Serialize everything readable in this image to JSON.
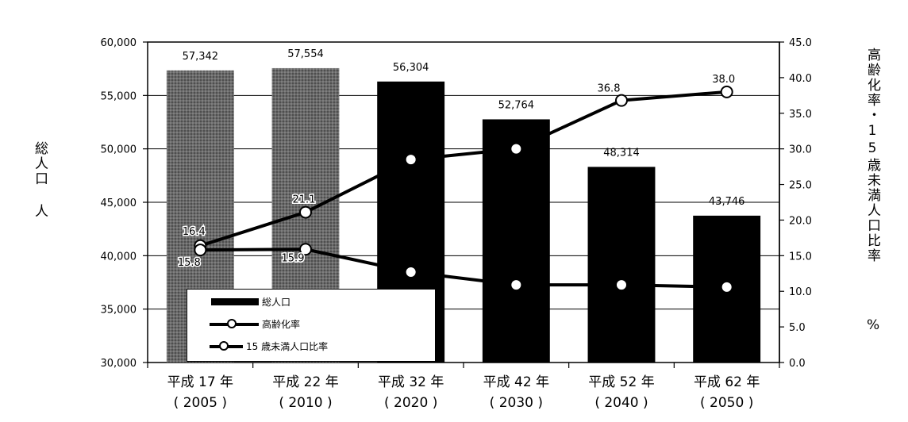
{
  "chart_data": {
    "type": "bar",
    "categories": [
      [
        "平成 17 年",
        "( 2005 )"
      ],
      [
        "平成 22 年",
        "( 2010 )"
      ],
      [
        "平成 32 年",
        "( 2020 )"
      ],
      [
        "平成 42 年",
        "( 2030 )"
      ],
      [
        "平成 52 年",
        "( 2040 )"
      ],
      [
        "平成 62 年",
        "( 2050 )"
      ]
    ],
    "series": [
      {
        "name": "総人口",
        "type": "bar",
        "axis": "left",
        "values": [
          57342,
          57554,
          56304,
          52764,
          48314,
          43746
        ],
        "labels": [
          "57,342",
          "57,554",
          "56,304",
          "52,764",
          "48,314",
          "43,746"
        ],
        "styles": [
          "hatched",
          "hatched",
          "solid",
          "solid",
          "solid",
          "solid"
        ]
      },
      {
        "name": "高齢化率",
        "type": "line",
        "axis": "right",
        "values": [
          16.4,
          21.1,
          28.5,
          30.0,
          36.8,
          38.0
        ],
        "labels": [
          "16.4",
          "21.1",
          "",
          "",
          "36.8",
          "38.0"
        ]
      },
      {
        "name": "15 歳未満人口比率",
        "type": "line",
        "axis": "right",
        "values": [
          15.8,
          15.9,
          12.7,
          10.9,
          10.9,
          10.6
        ],
        "labels": [
          "15.8",
          "15.9",
          "",
          "",
          "",
          ""
        ]
      }
    ],
    "ylim_left": [
      30000,
      60000
    ],
    "yticks_left": [
      "30,000",
      "35,000",
      "40,000",
      "45,000",
      "50,000",
      "55,000",
      "60,000"
    ],
    "ylim_right": [
      0,
      45
    ],
    "yticks_right": [
      "0.0",
      "5.0",
      "10.0",
      "15.0",
      "20.0",
      "25.0",
      "30.0",
      "35.0",
      "40.0",
      "45.0"
    ],
    "ylabel_left": "総人口 人",
    "ylabel_right": "高齢化率・15歳未満人口比率",
    "ylabel_right_unit": "%",
    "legend_position": "bottom-left",
    "grid": true
  },
  "legend": {
    "items": [
      "総人口",
      "高齢化率",
      "15 歳未満人口比率"
    ]
  }
}
